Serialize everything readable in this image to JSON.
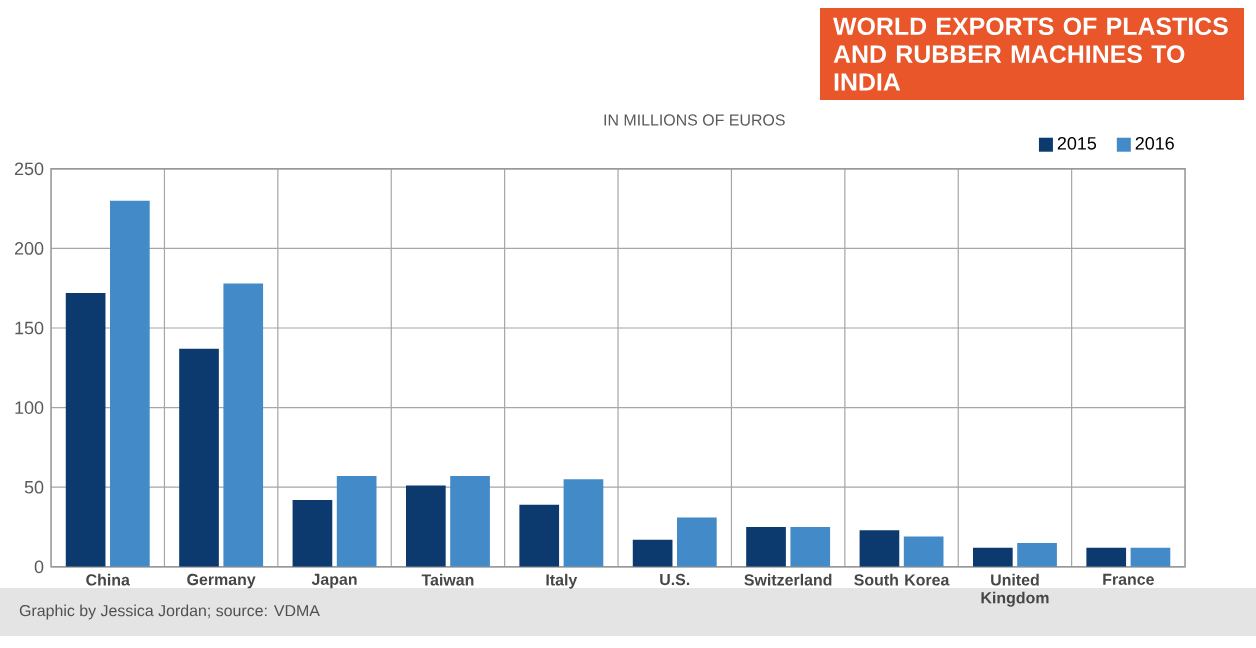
{
  "chart_data": {
    "type": "bar",
    "title": "WORLD EXPORTS OF PLASTICS AND RUBBER MACHINES TO INDIA",
    "subtitle": "IN MILLIONS OF EUROS",
    "categories": [
      "China",
      "Germany",
      "Japan",
      "Taiwan",
      "Italy",
      "U.S.",
      "Switzerland",
      "South Korea",
      "United Kingdom",
      "France"
    ],
    "series": [
      {
        "name": "2015",
        "color": "#0d3a6e",
        "values": [
          172,
          137,
          42,
          51,
          39,
          17,
          25,
          23,
          12,
          12
        ]
      },
      {
        "name": "2016",
        "color": "#438ac8",
        "values": [
          230,
          178,
          57,
          57,
          55,
          31,
          25,
          19,
          15,
          12
        ]
      }
    ],
    "ylim": [
      0,
      250
    ],
    "yticks": [
      0,
      50,
      100,
      150,
      200,
      250
    ],
    "grid": true,
    "legend": "top right",
    "annotations": [
      "Graphic by Jessica Jordan; source: VDMA"
    ]
  }
}
